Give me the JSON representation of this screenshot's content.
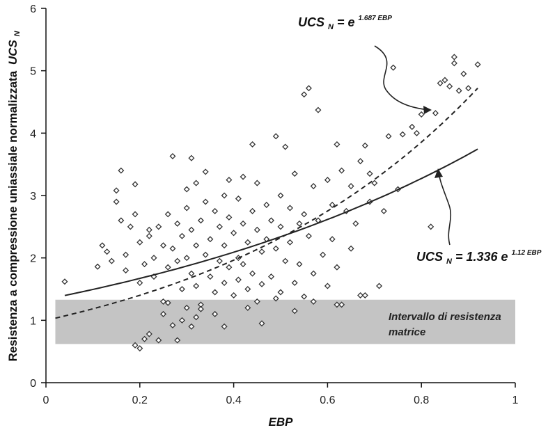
{
  "chart_data": {
    "type": "scatter",
    "xlabel": "EBP",
    "ylabel": "Resistenza a compressione uniassiale normalizzata",
    "ylabel_sym": "UCS",
    "ylabel_sub": "N",
    "xlim": [
      0,
      1
    ],
    "ylim": [
      0,
      6
    ],
    "x_ticks": [
      "0",
      "0.2",
      "0.4",
      "0.6",
      "0.8",
      "1"
    ],
    "y_ticks": [
      "0",
      "1",
      "2",
      "3",
      "4",
      "5",
      "6"
    ],
    "grid": false,
    "band": {
      "label_line1": "Intervallo di resistenza",
      "label_line2": "matrice",
      "ymin": 0.62,
      "ymax": 1.33,
      "xmin": 0.02,
      "xmax": 1.0,
      "color": "#c4c4c4"
    },
    "curves": [
      {
        "style": "dashed",
        "a": 1.0,
        "b": 1.687,
        "x_range": [
          0.02,
          0.92
        ],
        "equation": {
          "sym": "UCS",
          "sub": "N",
          "lhs_tail": " = e",
          "coef": "",
          "exp": "1.687 EBP"
        }
      },
      {
        "style": "solid",
        "a": 1.336,
        "b": 1.12,
        "x_range": [
          0.04,
          0.92
        ],
        "equation": {
          "sym": "UCS",
          "sub": "N",
          "lhs_tail": " = ",
          "coef": "1.336 e",
          "exp": "1.12 EBP"
        }
      }
    ],
    "points": [
      [
        0.04,
        1.62
      ],
      [
        0.11,
        1.86
      ],
      [
        0.12,
        2.2
      ],
      [
        0.13,
        2.1
      ],
      [
        0.14,
        1.95
      ],
      [
        0.15,
        3.08
      ],
      [
        0.15,
        2.9
      ],
      [
        0.16,
        3.4
      ],
      [
        0.16,
        2.6
      ],
      [
        0.17,
        2.05
      ],
      [
        0.17,
        1.8
      ],
      [
        0.18,
        2.5
      ],
      [
        0.19,
        2.7
      ],
      [
        0.19,
        3.18
      ],
      [
        0.2,
        2.25
      ],
      [
        0.2,
        1.6
      ],
      [
        0.21,
        1.9
      ],
      [
        0.22,
        2.35
      ],
      [
        0.22,
        2.45
      ],
      [
        0.23,
        2.0
      ],
      [
        0.23,
        1.7
      ],
      [
        0.24,
        2.5
      ],
      [
        0.25,
        2.2
      ],
      [
        0.25,
        1.3
      ],
      [
        0.26,
        2.7
      ],
      [
        0.26,
        1.85
      ],
      [
        0.27,
        3.63
      ],
      [
        0.27,
        2.15
      ],
      [
        0.28,
        2.55
      ],
      [
        0.28,
        1.95
      ],
      [
        0.29,
        1.5
      ],
      [
        0.29,
        2.35
      ],
      [
        0.3,
        3.1
      ],
      [
        0.3,
        2.8
      ],
      [
        0.3,
        2.0
      ],
      [
        0.31,
        3.6
      ],
      [
        0.31,
        2.45
      ],
      [
        0.31,
        1.75
      ],
      [
        0.32,
        3.2
      ],
      [
        0.32,
        2.2
      ],
      [
        0.32,
        1.55
      ],
      [
        0.33,
        2.6
      ],
      [
        0.33,
        1.25
      ],
      [
        0.34,
        3.38
      ],
      [
        0.34,
        2.9
      ],
      [
        0.34,
        2.05
      ],
      [
        0.35,
        2.3
      ],
      [
        0.35,
        1.7
      ],
      [
        0.36,
        2.75
      ],
      [
        0.36,
        1.45
      ],
      [
        0.37,
        2.5
      ],
      [
        0.37,
        1.95
      ],
      [
        0.38,
        3.0
      ],
      [
        0.38,
        2.2
      ],
      [
        0.38,
        1.6
      ],
      [
        0.39,
        3.25
      ],
      [
        0.39,
        2.65
      ],
      [
        0.39,
        1.85
      ],
      [
        0.4,
        2.4
      ],
      [
        0.4,
        1.4
      ],
      [
        0.41,
        2.95
      ],
      [
        0.41,
        2.0
      ],
      [
        0.41,
        1.65
      ],
      [
        0.42,
        3.3
      ],
      [
        0.42,
        2.55
      ],
      [
        0.42,
        1.9
      ],
      [
        0.43,
        2.25
      ],
      [
        0.43,
        1.5
      ],
      [
        0.44,
        3.82
      ],
      [
        0.44,
        2.75
      ],
      [
        0.44,
        1.75
      ],
      [
        0.45,
        3.2
      ],
      [
        0.45,
        2.45
      ],
      [
        0.45,
        1.3
      ],
      [
        0.46,
        2.1
      ],
      [
        0.46,
        1.58
      ],
      [
        0.47,
        2.85
      ],
      [
        0.47,
        2.3
      ],
      [
        0.48,
        2.6
      ],
      [
        0.48,
        1.7
      ],
      [
        0.49,
        3.95
      ],
      [
        0.49,
        2.15
      ],
      [
        0.5,
        3.0
      ],
      [
        0.5,
        2.5
      ],
      [
        0.5,
        1.45
      ],
      [
        0.51,
        3.78
      ],
      [
        0.51,
        1.95
      ],
      [
        0.52,
        2.8
      ],
      [
        0.52,
        2.25
      ],
      [
        0.53,
        3.35
      ],
      [
        0.53,
        1.6
      ],
      [
        0.54,
        2.55
      ],
      [
        0.54,
        1.9
      ],
      [
        0.55,
        4.62
      ],
      [
        0.55,
        2.7
      ],
      [
        0.55,
        1.38
      ],
      [
        0.56,
        4.72
      ],
      [
        0.56,
        2.35
      ],
      [
        0.57,
        3.15
      ],
      [
        0.57,
        1.75
      ],
      [
        0.58,
        4.37
      ],
      [
        0.58,
        2.6
      ],
      [
        0.59,
        2.05
      ],
      [
        0.6,
        3.25
      ],
      [
        0.6,
        1.55
      ],
      [
        0.61,
        2.85
      ],
      [
        0.61,
        2.3
      ],
      [
        0.62,
        3.82
      ],
      [
        0.62,
        1.85
      ],
      [
        0.63,
        3.4
      ],
      [
        0.63,
        1.25
      ],
      [
        0.64,
        2.75
      ],
      [
        0.65,
        3.15
      ],
      [
        0.65,
        2.15
      ],
      [
        0.66,
        2.55
      ],
      [
        0.67,
        3.55
      ],
      [
        0.67,
        1.4
      ],
      [
        0.68,
        3.8
      ],
      [
        0.69,
        3.35
      ],
      [
        0.69,
        2.9
      ],
      [
        0.7,
        3.2
      ],
      [
        0.71,
        1.55
      ],
      [
        0.72,
        2.75
      ],
      [
        0.73,
        3.95
      ],
      [
        0.74,
        5.05
      ],
      [
        0.75,
        3.1
      ],
      [
        0.76,
        3.98
      ],
      [
        0.78,
        4.1
      ],
      [
        0.79,
        4.0
      ],
      [
        0.8,
        4.3
      ],
      [
        0.82,
        2.5
      ],
      [
        0.83,
        4.32
      ],
      [
        0.84,
        4.8
      ],
      [
        0.85,
        4.85
      ],
      [
        0.86,
        4.75
      ],
      [
        0.87,
        5.22
      ],
      [
        0.87,
        5.12
      ],
      [
        0.88,
        4.68
      ],
      [
        0.89,
        4.95
      ],
      [
        0.9,
        4.72
      ],
      [
        0.92,
        5.1
      ],
      [
        0.19,
        0.6
      ],
      [
        0.2,
        0.55
      ],
      [
        0.21,
        0.7
      ],
      [
        0.22,
        0.78
      ],
      [
        0.24,
        0.68
      ],
      [
        0.25,
        1.1
      ],
      [
        0.26,
        1.28
      ],
      [
        0.27,
        0.92
      ],
      [
        0.28,
        0.68
      ],
      [
        0.29,
        1.0
      ],
      [
        0.3,
        1.2
      ],
      [
        0.31,
        0.9
      ],
      [
        0.32,
        1.05
      ],
      [
        0.33,
        1.18
      ],
      [
        0.36,
        1.1
      ],
      [
        0.38,
        0.9
      ],
      [
        0.43,
        1.2
      ],
      [
        0.46,
        0.95
      ],
      [
        0.49,
        1.35
      ],
      [
        0.53,
        1.15
      ],
      [
        0.57,
        1.3
      ],
      [
        0.62,
        1.25
      ],
      [
        0.68,
        1.4
      ]
    ]
  }
}
